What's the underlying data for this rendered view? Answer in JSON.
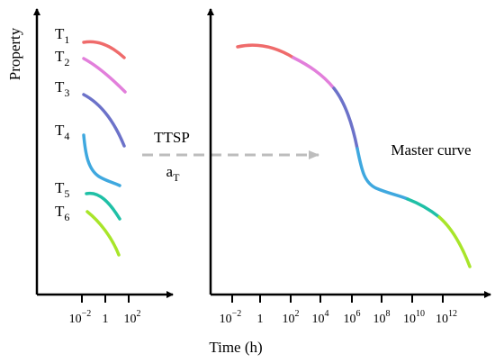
{
  "left_panel": {
    "ylabel": "Property",
    "curves": [
      {
        "label": "T",
        "subscript": "1",
        "color": "#ef6b6b"
      },
      {
        "label": "T",
        "subscript": "2",
        "color": "#e27fdb"
      },
      {
        "label": "T",
        "subscript": "3",
        "color": "#6c72c9"
      },
      {
        "label": "T",
        "subscript": "4",
        "color": "#3fa8df"
      },
      {
        "label": "T",
        "subscript": "5",
        "color": "#1fc0a6"
      },
      {
        "label": "T",
        "subscript": "6",
        "color": "#a8e52a"
      }
    ],
    "xticks": [
      {
        "base": "10",
        "exp": "−2"
      },
      {
        "base": "1",
        "exp": ""
      },
      {
        "base": "10",
        "exp": "2"
      }
    ]
  },
  "arrow": {
    "top_label": "TTSP",
    "bottom_label": "a",
    "bottom_subscript": "T",
    "color": "#bdbdbd"
  },
  "right_panel": {
    "title": "Master curve",
    "xlabel": "Time (h)",
    "xticks": [
      {
        "base": "10",
        "exp": "−2"
      },
      {
        "base": "1",
        "exp": ""
      },
      {
        "base": "10",
        "exp": "2"
      },
      {
        "base": "10",
        "exp": "4"
      },
      {
        "base": "10",
        "exp": "6"
      },
      {
        "base": "10",
        "exp": "8"
      },
      {
        "base": "10",
        "exp": "10"
      },
      {
        "base": "10",
        "exp": "12"
      }
    ]
  }
}
